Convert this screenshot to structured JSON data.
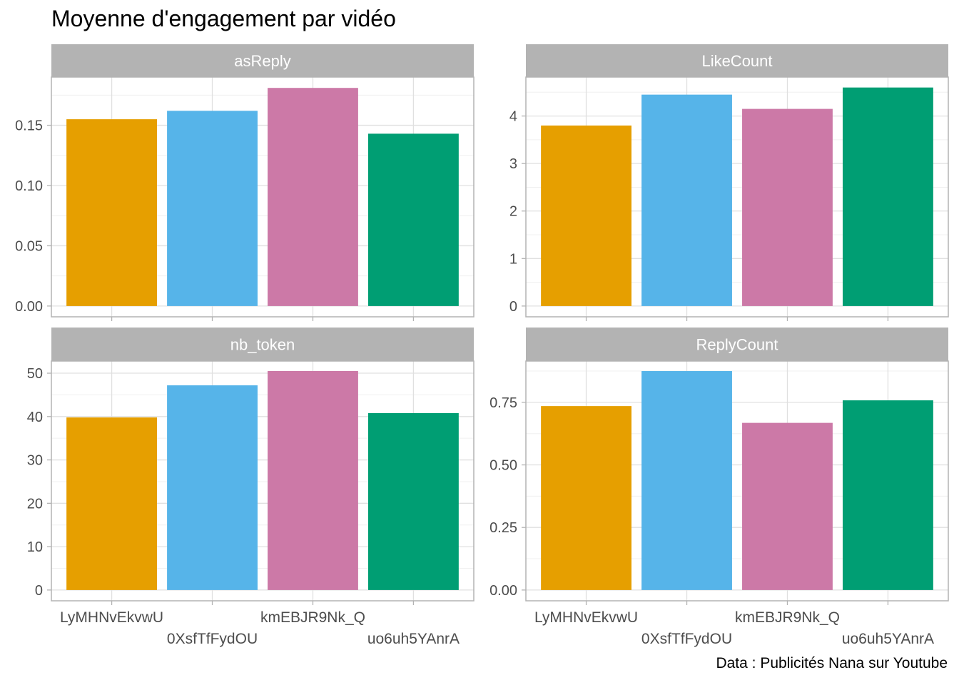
{
  "chart_data": {
    "type": "bar",
    "title": "Moyenne d'engagement par vidéo",
    "caption": "Data : Publicités Nana sur Youtube",
    "categories": [
      "LyMHNvEkvwU",
      "0XsfTfFydOU",
      "kmEBJR9Nk_Q",
      "uo6uh5YAnrA"
    ],
    "colors": [
      "#E69F00",
      "#56B4E9",
      "#CC79A7",
      "#009E73"
    ],
    "grid": true,
    "legend": "none",
    "panels": [
      {
        "name": "asReply",
        "values": [
          0.155,
          0.162,
          0.181,
          0.143
        ],
        "ylim": [
          0,
          0.19
        ],
        "ticks": [
          0,
          0.05,
          0.1,
          0.15
        ],
        "tick_labels": [
          "0.00",
          "0.05",
          "0.10",
          "0.15"
        ]
      },
      {
        "name": "LikeCount",
        "values": [
          3.8,
          4.45,
          4.15,
          4.6
        ],
        "ylim": [
          0,
          4.82
        ],
        "ticks": [
          0,
          1,
          2,
          3,
          4
        ],
        "tick_labels": [
          "0",
          "1",
          "2",
          "3",
          "4"
        ]
      },
      {
        "name": "nb_token",
        "values": [
          39.8,
          47.2,
          50.5,
          40.8
        ],
        "ylim": [
          0,
          52.8
        ],
        "ticks": [
          0,
          10,
          20,
          30,
          40,
          50
        ],
        "tick_labels": [
          "0",
          "10",
          "20",
          "30",
          "40",
          "50"
        ]
      },
      {
        "name": "ReplyCount",
        "values": [
          0.735,
          0.875,
          0.668,
          0.758
        ],
        "ylim": [
          0,
          0.915
        ],
        "ticks": [
          0,
          0.25,
          0.5,
          0.75
        ],
        "tick_labels": [
          "0.00",
          "0.25",
          "0.50",
          "0.75"
        ]
      }
    ]
  }
}
